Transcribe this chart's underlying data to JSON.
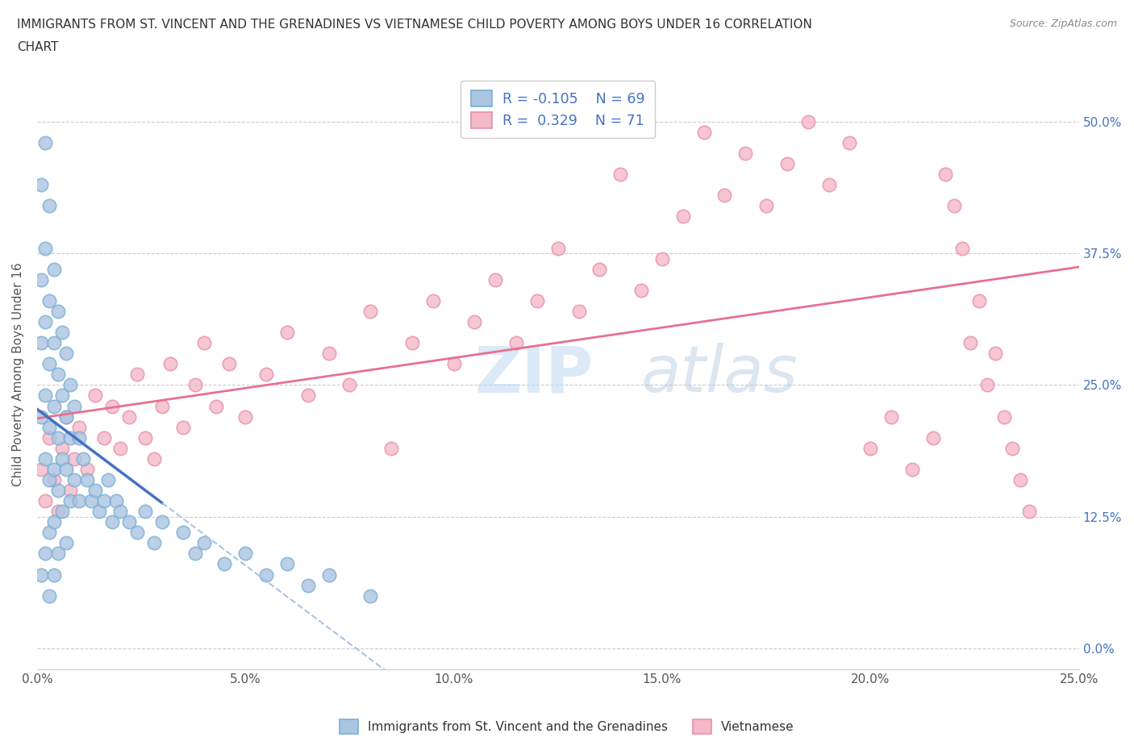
{
  "title_line1": "IMMIGRANTS FROM ST. VINCENT AND THE GRENADINES VS VIETNAMESE CHILD POVERTY AMONG BOYS UNDER 16 CORRELATION",
  "title_line2": "CHART",
  "source": "Source: ZipAtlas.com",
  "ylabel": "Child Poverty Among Boys Under 16",
  "xlim": [
    0.0,
    0.25
  ],
  "ylim": [
    -0.02,
    0.54
  ],
  "xticks": [
    0.0,
    0.05,
    0.1,
    0.15,
    0.2,
    0.25
  ],
  "yticks": [
    0.0,
    0.125,
    0.25,
    0.375,
    0.5
  ],
  "xticklabels": [
    "0.0%",
    "5.0%",
    "10.0%",
    "15.0%",
    "20.0%",
    "25.0%"
  ],
  "yticklabels": [
    "0.0%",
    "12.5%",
    "25.0%",
    "37.5%",
    "50.0%"
  ],
  "blue_color": "#aac4e2",
  "blue_edge": "#7aafd4",
  "pink_color": "#f4b8c8",
  "pink_edge": "#e890a8",
  "reg_blue_solid_color": "#4472c4",
  "reg_blue_dash_color": "#aac4e2",
  "reg_pink_color": "#e87090",
  "r_blue": -0.105,
  "n_blue": 69,
  "r_pink": 0.329,
  "n_pink": 71,
  "legend_label_blue": "Immigrants from St. Vincent and the Grenadines",
  "legend_label_pink": "Vietnamese",
  "watermark_zip": "ZIP",
  "watermark_atlas": "atlas",
  "blue_scatter_x": [
    0.001,
    0.001,
    0.001,
    0.001,
    0.001,
    0.002,
    0.002,
    0.002,
    0.002,
    0.002,
    0.002,
    0.003,
    0.003,
    0.003,
    0.003,
    0.003,
    0.003,
    0.003,
    0.004,
    0.004,
    0.004,
    0.004,
    0.004,
    0.004,
    0.005,
    0.005,
    0.005,
    0.005,
    0.005,
    0.006,
    0.006,
    0.006,
    0.006,
    0.007,
    0.007,
    0.007,
    0.007,
    0.008,
    0.008,
    0.008,
    0.009,
    0.009,
    0.01,
    0.01,
    0.011,
    0.012,
    0.013,
    0.014,
    0.015,
    0.016,
    0.017,
    0.018,
    0.019,
    0.02,
    0.022,
    0.024,
    0.026,
    0.028,
    0.03,
    0.035,
    0.038,
    0.04,
    0.045,
    0.05,
    0.055,
    0.06,
    0.065,
    0.07,
    0.08
  ],
  "blue_scatter_y": [
    0.44,
    0.35,
    0.29,
    0.22,
    0.07,
    0.48,
    0.38,
    0.31,
    0.24,
    0.18,
    0.09,
    0.42,
    0.33,
    0.27,
    0.21,
    0.16,
    0.11,
    0.05,
    0.36,
    0.29,
    0.23,
    0.17,
    0.12,
    0.07,
    0.32,
    0.26,
    0.2,
    0.15,
    0.09,
    0.3,
    0.24,
    0.18,
    0.13,
    0.28,
    0.22,
    0.17,
    0.1,
    0.25,
    0.2,
    0.14,
    0.23,
    0.16,
    0.2,
    0.14,
    0.18,
    0.16,
    0.14,
    0.15,
    0.13,
    0.14,
    0.16,
    0.12,
    0.14,
    0.13,
    0.12,
    0.11,
    0.13,
    0.1,
    0.12,
    0.11,
    0.09,
    0.1,
    0.08,
    0.09,
    0.07,
    0.08,
    0.06,
    0.07,
    0.05
  ],
  "pink_scatter_x": [
    0.001,
    0.002,
    0.003,
    0.004,
    0.005,
    0.006,
    0.007,
    0.008,
    0.009,
    0.01,
    0.012,
    0.014,
    0.016,
    0.018,
    0.02,
    0.022,
    0.024,
    0.026,
    0.028,
    0.03,
    0.032,
    0.035,
    0.038,
    0.04,
    0.043,
    0.046,
    0.05,
    0.055,
    0.06,
    0.065,
    0.07,
    0.075,
    0.08,
    0.085,
    0.09,
    0.095,
    0.1,
    0.105,
    0.11,
    0.115,
    0.12,
    0.125,
    0.13,
    0.135,
    0.14,
    0.145,
    0.15,
    0.155,
    0.16,
    0.165,
    0.17,
    0.175,
    0.18,
    0.185,
    0.19,
    0.195,
    0.2,
    0.205,
    0.21,
    0.215,
    0.218,
    0.22,
    0.222,
    0.224,
    0.226,
    0.228,
    0.23,
    0.232,
    0.234,
    0.236,
    0.238
  ],
  "pink_scatter_y": [
    0.17,
    0.14,
    0.2,
    0.16,
    0.13,
    0.19,
    0.22,
    0.15,
    0.18,
    0.21,
    0.17,
    0.24,
    0.2,
    0.23,
    0.19,
    0.22,
    0.26,
    0.2,
    0.18,
    0.23,
    0.27,
    0.21,
    0.25,
    0.29,
    0.23,
    0.27,
    0.22,
    0.26,
    0.3,
    0.24,
    0.28,
    0.25,
    0.32,
    0.19,
    0.29,
    0.33,
    0.27,
    0.31,
    0.35,
    0.29,
    0.33,
    0.38,
    0.32,
    0.36,
    0.45,
    0.34,
    0.37,
    0.41,
    0.49,
    0.43,
    0.47,
    0.42,
    0.46,
    0.5,
    0.44,
    0.48,
    0.19,
    0.22,
    0.17,
    0.2,
    0.45,
    0.42,
    0.38,
    0.29,
    0.33,
    0.25,
    0.28,
    0.22,
    0.19,
    0.16,
    0.13
  ]
}
